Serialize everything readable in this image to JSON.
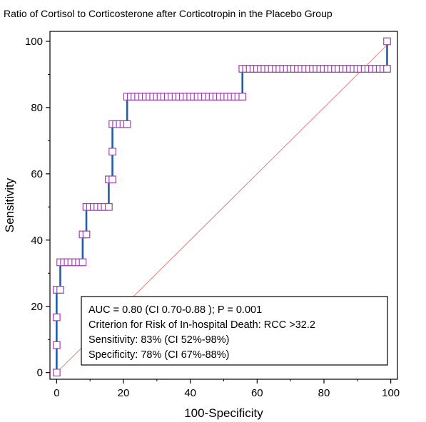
{
  "chart_data": {
    "type": "line",
    "title": "Ratio of Cortisol to Corticosterone after Corticotropin in the Placebo Group",
    "xlabel": "100-Specificity",
    "ylabel": "Sensitivity",
    "xlim": [
      -2,
      102
    ],
    "ylim": [
      -2,
      103
    ],
    "xticks": [
      0,
      20,
      40,
      60,
      80,
      100
    ],
    "yticks": [
      0,
      20,
      40,
      60,
      80,
      100
    ],
    "grid": false,
    "colors": {
      "roc_line": "#1f5fa8",
      "marker": "#a040b0",
      "diagonal": "#e08080",
      "frame": "#000000"
    },
    "series": [
      {
        "x": [
          0,
          0,
          0,
          0,
          1.1,
          1.1,
          2.2,
          3.3,
          4.4,
          5.6,
          6.7,
          7.8,
          7.8,
          8.9,
          8.9,
          10,
          11.1,
          12.2,
          13.3,
          14.4,
          15.6,
          15.6,
          16.7,
          16.7,
          16.7,
          17.8,
          18.9,
          20,
          21.1,
          21.1,
          22.2,
          23.3,
          24.4,
          25.6,
          26.7,
          27.8,
          28.9,
          30,
          31.1,
          32.2,
          33.3,
          34.4,
          35.6,
          36.7,
          37.8,
          38.9,
          40,
          41.1,
          42.2,
          43.3,
          44.4,
          45.6,
          46.7,
          47.8,
          48.9,
          50,
          51.1,
          52.2,
          53.3,
          54.4,
          55.6,
          55.6,
          56.7,
          57.8,
          58.9,
          60,
          61.1,
          62.2,
          63.3,
          64.4,
          65.6,
          66.7,
          67.8,
          68.9,
          70,
          71.1,
          72.2,
          73.3,
          74.4,
          75.6,
          76.7,
          77.8,
          78.9,
          80,
          81.1,
          82.2,
          83.3,
          84.4,
          85.6,
          86.7,
          87.8,
          88.9,
          90,
          91.1,
          92.2,
          93.3,
          94.4,
          95.6,
          96.7,
          97.8,
          98.9,
          98.9
        ],
        "y": [
          0,
          8.3,
          16.7,
          25,
          25,
          33.3,
          33.3,
          33.3,
          33.3,
          33.3,
          33.3,
          33.3,
          41.7,
          41.7,
          50,
          50,
          50,
          50,
          50,
          50,
          50,
          58.3,
          58.3,
          66.7,
          75,
          75,
          75,
          75,
          75,
          83.3,
          83.3,
          83.3,
          83.3,
          83.3,
          83.3,
          83.3,
          83.3,
          83.3,
          83.3,
          83.3,
          83.3,
          83.3,
          83.3,
          83.3,
          83.3,
          83.3,
          83.3,
          83.3,
          83.3,
          83.3,
          83.3,
          83.3,
          83.3,
          83.3,
          83.3,
          83.3,
          83.3,
          83.3,
          83.3,
          83.3,
          83.3,
          91.7,
          91.7,
          91.7,
          91.7,
          91.7,
          91.7,
          91.7,
          91.7,
          91.7,
          91.7,
          91.7,
          91.7,
          91.7,
          91.7,
          91.7,
          91.7,
          91.7,
          91.7,
          91.7,
          91.7,
          91.7,
          91.7,
          91.7,
          91.7,
          91.7,
          91.7,
          91.7,
          91.7,
          91.7,
          91.7,
          91.7,
          91.7,
          91.7,
          91.7,
          91.7,
          91.7,
          91.7,
          91.7,
          91.7,
          91.7,
          100
        ]
      }
    ],
    "reference_line": {
      "x": [
        0,
        100
      ],
      "y": [
        0,
        100
      ]
    },
    "annotation": {
      "placement": "bottom-right",
      "lines": [
        "AUC = 0.80 (CI 0.70-0.88 ); P = 0.001",
        "Criterion for Risk of In-hospital Death: RCC >32.2",
        "Sensitivity: 83% (CI 52%-98%)",
        "Specificity: 78% (CI 67%-88%)"
      ]
    }
  }
}
